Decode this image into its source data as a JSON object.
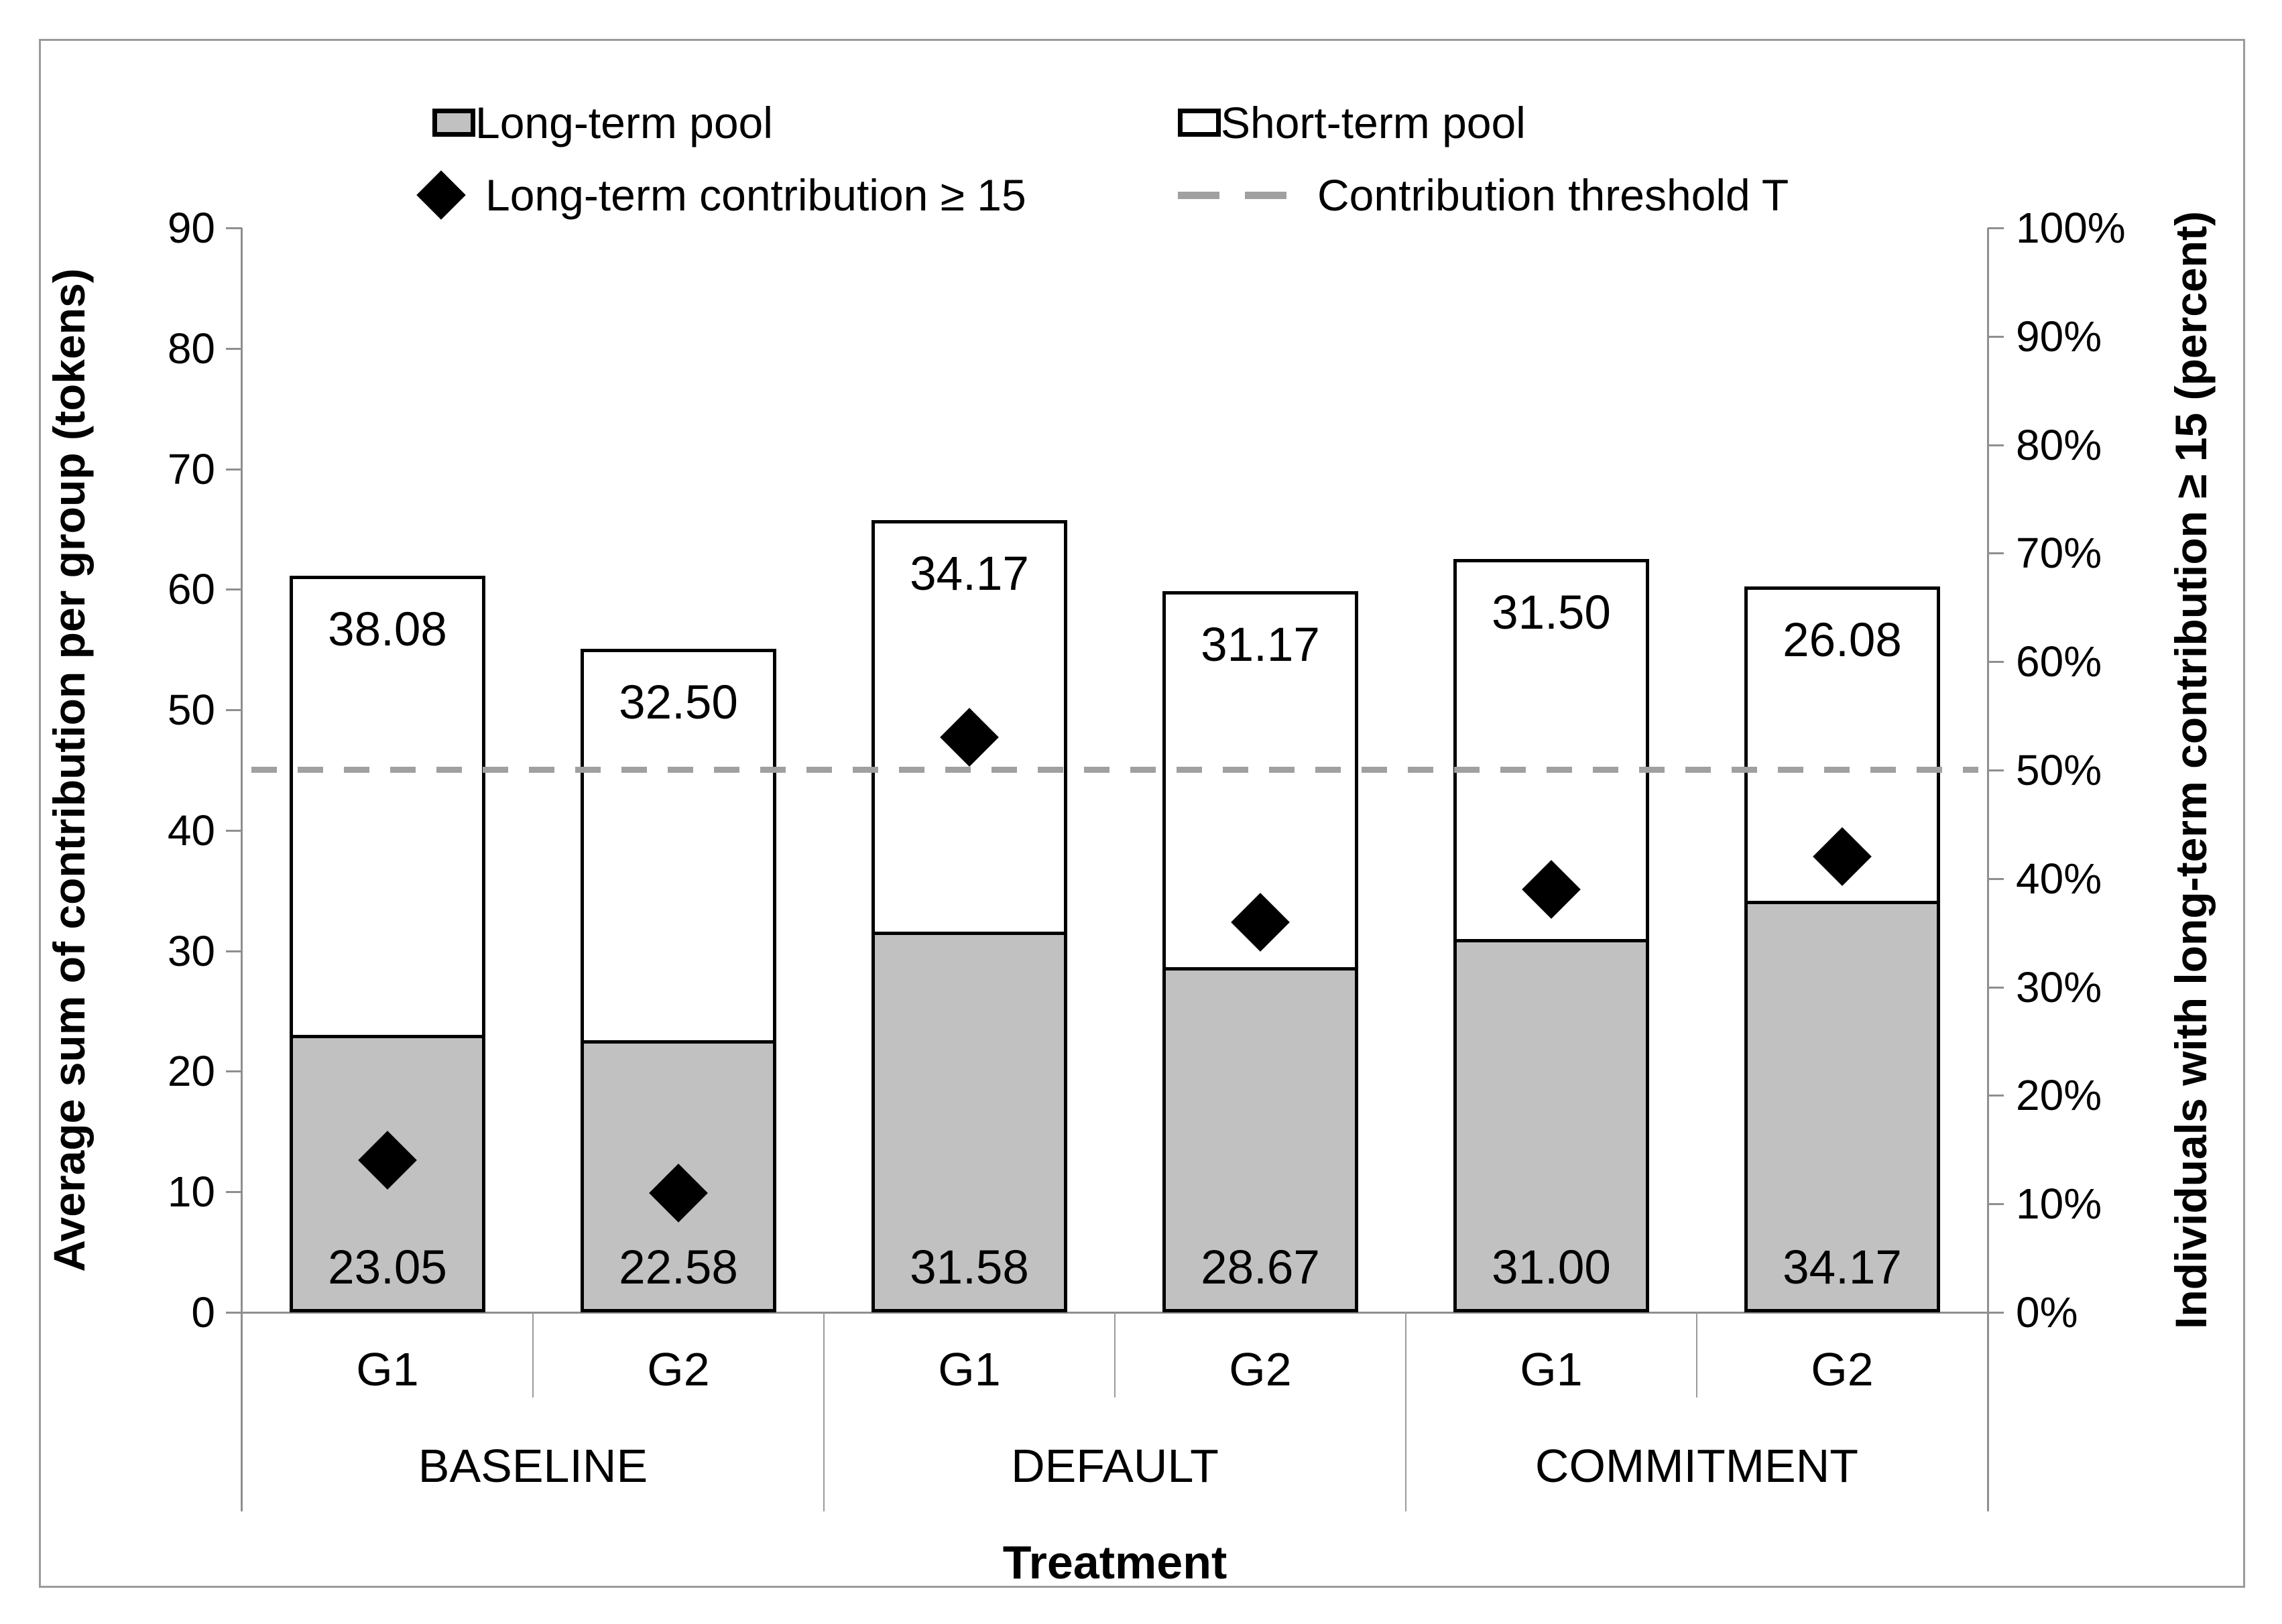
{
  "chart_data": {
    "type": "bar",
    "subtype": "stacked-bars-with-scatter-markers-and-threshold-line",
    "title": "",
    "xlabel": "Treatment",
    "categories": [
      "G1",
      "G2",
      "G1",
      "G2",
      "G1",
      "G2"
    ],
    "treatments": [
      {
        "name": "BASELINE",
        "groups": [
          "G1",
          "G2"
        ]
      },
      {
        "name": "DEFAULT",
        "groups": [
          "G1",
          "G2"
        ]
      },
      {
        "name": "COMMITMENT",
        "groups": [
          "G1",
          "G2"
        ]
      }
    ],
    "left_axis": {
      "label": "Average sum of contribution per group (tokens)",
      "min": 0,
      "max": 90,
      "step": 10,
      "tick_labels": [
        "0",
        "10",
        "20",
        "30",
        "40",
        "50",
        "60",
        "70",
        "80",
        "90"
      ]
    },
    "right_axis": {
      "label": "Individuals with long-term contribution ≥ 15 (percent)",
      "min": 0,
      "max": 100,
      "step": 10,
      "tick_labels": [
        "0%",
        "10%",
        "20%",
        "30%",
        "40%",
        "50%",
        "60%",
        "70%",
        "80%",
        "90%",
        "100%"
      ]
    },
    "series": [
      {
        "name": "Long-term pool",
        "role": "stack-bottom",
        "color": "#c1c1c1",
        "axis": "left",
        "values": [
          23.05,
          22.58,
          31.58,
          28.67,
          31.0,
          34.17
        ],
        "labels": [
          "23.05",
          "22.58",
          "31.58",
          "28.67",
          "31.00",
          "34.17"
        ]
      },
      {
        "name": "Short-term pool",
        "role": "stack-top",
        "color": "#ffffff",
        "axis": "left",
        "values": [
          38.08,
          32.5,
          34.17,
          31.17,
          31.5,
          26.08
        ],
        "labels": [
          "38.08",
          "32.50",
          "34.17",
          "31.17",
          "31.50",
          "26.08"
        ]
      },
      {
        "name": "Long-term contribution ≥ 15",
        "role": "scatter-diamond",
        "color": "#000000",
        "axis": "right",
        "values_percent": [
          14,
          11,
          53,
          36,
          39,
          42
        ]
      },
      {
        "name": "Contribution threshold T",
        "role": "dashed-threshold-line",
        "color": "#a0a0a0",
        "axis": "left",
        "value_tokens": 45,
        "value_percent": 50
      }
    ],
    "grid": false,
    "legend_position": "top"
  },
  "legend": {
    "long_term_pool": "Long-term pool",
    "short_term_pool": "Short-term pool",
    "long_term_contribution": "Long-term contribution ≥ 15",
    "contribution_threshold": "Contribution threshold T"
  },
  "axes_text": {
    "left_title": "Average sum of contribution per group (tokens)",
    "right_title": "Individuals with long-term contribution ≥ 15 (percent)",
    "x_title": "Treatment"
  },
  "colors": {
    "bar_fill_gray": "#c1c1c1",
    "bar_fill_white": "#ffffff",
    "bar_border": "#000000",
    "marker": "#000000",
    "threshold_dash": "#a0a0a0",
    "axis_gray": "#8f8f8f",
    "figure_border": "#9b9b9b"
  }
}
